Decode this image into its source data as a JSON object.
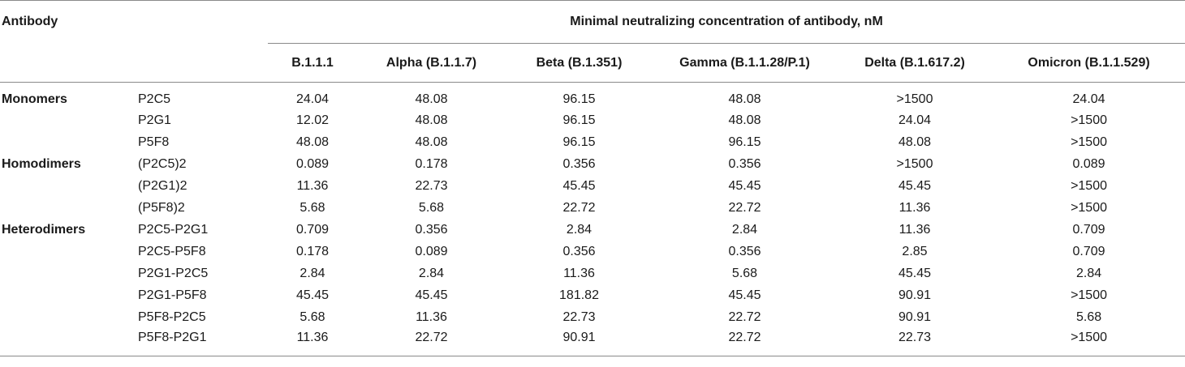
{
  "header": {
    "first_col": "Antibody",
    "span_title": "Minimal neutralizing concentration of antibody, nM",
    "variants": [
      "B.1.1.1",
      "Alpha (B.1.1.7)",
      "Beta (B.1.351)",
      "Gamma (B.1.1.28/P.1)",
      "Delta (B.1.617.2)",
      "Omicron (B.1.1.529)"
    ]
  },
  "rows": [
    {
      "group": "Monomers",
      "antibody": "P2C5",
      "values": [
        "24.04",
        "48.08",
        "96.15",
        "48.08",
        ">1500",
        "24.04"
      ]
    },
    {
      "group": "",
      "antibody": "P2G1",
      "values": [
        "12.02",
        "48.08",
        "96.15",
        "48.08",
        "24.04",
        ">1500"
      ]
    },
    {
      "group": "",
      "antibody": "P5F8",
      "values": [
        "48.08",
        "48.08",
        "96.15",
        "96.15",
        "48.08",
        ">1500"
      ]
    },
    {
      "group": "Homodimers",
      "antibody": "(P2C5)2",
      "values": [
        "0.089",
        "0.178",
        "0.356",
        "0.356",
        ">1500",
        "0.089"
      ]
    },
    {
      "group": "",
      "antibody": "(P2G1)2",
      "values": [
        "11.36",
        "22.73",
        "45.45",
        "45.45",
        "45.45",
        ">1500"
      ]
    },
    {
      "group": "",
      "antibody": "(P5F8)2",
      "values": [
        "5.68",
        "5.68",
        "22.72",
        "22.72",
        "11.36",
        ">1500"
      ]
    },
    {
      "group": "Heterodimers",
      "antibody": "P2C5-P2G1",
      "values": [
        "0.709",
        "0.356",
        "2.84",
        "2.84",
        "11.36",
        "0.709"
      ]
    },
    {
      "group": "",
      "antibody": "P2C5-P5F8",
      "values": [
        "0.178",
        "0.089",
        "0.356",
        "0.356",
        "2.85",
        "0.709"
      ]
    },
    {
      "group": "",
      "antibody": "P2G1-P2C5",
      "values": [
        "2.84",
        "2.84",
        "11.36",
        "5.68",
        "45.45",
        "2.84"
      ]
    },
    {
      "group": "",
      "antibody": "P2G1-P5F8",
      "values": [
        "45.45",
        "45.45",
        "181.82",
        "45.45",
        "90.91",
        ">1500"
      ]
    },
    {
      "group": "",
      "antibody": "P5F8-P2C5",
      "values": [
        "5.68",
        "11.36",
        "22.73",
        "22.72",
        "90.91",
        "5.68"
      ]
    },
    {
      "group": "",
      "antibody": "P5F8-P2G1",
      "values": [
        "11.36",
        "22.72",
        "90.91",
        "22.72",
        "22.73",
        ">1500"
      ]
    }
  ]
}
